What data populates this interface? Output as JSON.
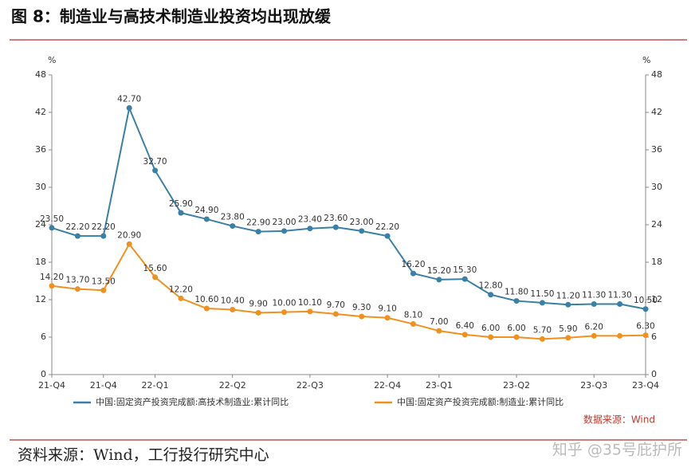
{
  "chart_data": {
    "type": "line",
    "title": "图 8：制造业与高技术制造业投资均出现放缓",
    "categories": [
      "21-Q4",
      null,
      "21-Q4",
      null,
      "22-Q1",
      null,
      null,
      "22-Q2",
      null,
      null,
      "22-Q3",
      null,
      null,
      "22-Q4",
      null,
      "23-Q1",
      null,
      null,
      "23-Q2",
      null,
      null,
      "23-Q3",
      null,
      "23-Q4"
    ],
    "series": [
      {
        "name": "中国:固定资产投资完成额:高技术制造业:累计同比",
        "color": "#3a7fa6",
        "values": [
          23.5,
          22.2,
          22.2,
          42.7,
          32.7,
          25.9,
          24.9,
          23.8,
          22.9,
          23.0,
          23.4,
          23.6,
          23.0,
          22.2,
          16.2,
          15.2,
          15.3,
          12.8,
          11.8,
          11.5,
          11.2,
          11.3,
          11.3,
          10.5
        ],
        "value_labels": [
          "23.50",
          "22.20",
          "22.20",
          "42.70",
          "32.70",
          "25.90",
          "24.90",
          "23.80",
          "22.90",
          "23.00",
          "23.40",
          "23.60",
          "23.00",
          "22.20",
          "16.20",
          "15.20",
          "15.30",
          "12.80",
          "11.80",
          "11.50",
          "11.20",
          "11.30",
          "11.30",
          "10.50"
        ]
      },
      {
        "name": "中国:固定资产投资完成额:制造业:累计同比",
        "color": "#f0901e",
        "values": [
          14.2,
          13.7,
          13.5,
          20.9,
          15.6,
          12.2,
          10.6,
          10.4,
          9.9,
          10.0,
          10.1,
          9.7,
          9.3,
          9.1,
          8.1,
          7.0,
          6.4,
          6.0,
          6.0,
          5.7,
          5.9,
          6.2,
          6.2,
          6.3
        ],
        "value_labels": [
          "14.20",
          "13.70",
          "13.50",
          "20.90",
          "15.60",
          "12.20",
          "10.60",
          "10.40",
          "9.90",
          "10.00",
          "10.10",
          "9.70",
          "9.30",
          "9.10",
          "8.10",
          "7.00",
          "6.40",
          "6.00",
          "6.00",
          "5.70",
          "5.90",
          "6.20",
          null,
          "6.30"
        ]
      }
    ],
    "ylabel": "%",
    "y2label": "%",
    "ylim": [
      0,
      48
    ],
    "yticks": [
      0,
      6,
      12,
      18,
      24,
      30,
      36,
      42,
      48
    ],
    "y2lim": [
      0,
      48
    ],
    "y2ticks": [
      0,
      6,
      12,
      18,
      24,
      30,
      36,
      42,
      48
    ],
    "legend": "bottom",
    "source_note": "数据来源：Wind"
  },
  "footer": "资料来源：Wind，工行投行研究中心",
  "watermark": "知乎 @35号庇护所"
}
